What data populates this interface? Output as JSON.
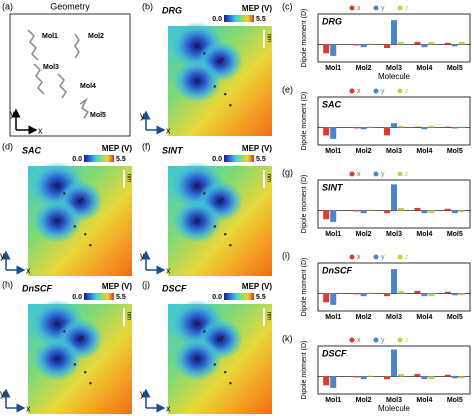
{
  "axes": {
    "x": "x",
    "y": "y"
  },
  "geometry_panel": {
    "label": "(a)",
    "title": "Geometry",
    "molecules": [
      "Mol1",
      "Mol2",
      "Mol3",
      "Mol4",
      "Mol5"
    ]
  },
  "mep_panels": [
    {
      "label": "(b)",
      "method": "DRG",
      "colorbar_title": "MEP (V)",
      "colorbar_min": {
        "value": 0,
        "label": "0.0"
      },
      "colorbar_max": 5.5,
      "scale_bar": "nm"
    },
    {
      "label": "(d)",
      "method": "SAC",
      "colorbar_title": "MEP (V)",
      "colorbar_min": {
        "value": 0,
        "label": "0.0"
      },
      "colorbar_max": 5.5,
      "scale_bar": "nm"
    },
    {
      "label": "(f)",
      "method": "SINT",
      "colorbar_title": "MEP (V)",
      "colorbar_min": {
        "value": 0,
        "label": "0.0"
      },
      "colorbar_max": 5.5,
      "scale_bar": "nm"
    },
    {
      "label": "(h)",
      "method": "DnSCF",
      "colorbar_title": "MEP (V)",
      "colorbar_min": {
        "value": 0,
        "label": "0.0"
      },
      "colorbar_max": 5.5,
      "scale_bar": "nm"
    },
    {
      "label": "(j)",
      "method": "DSCF",
      "colorbar_title": "MEP (V)",
      "colorbar_min": {
        "value": 0,
        "label": "0.0"
      },
      "colorbar_max": 5.5,
      "scale_bar": "nm"
    }
  ],
  "chart_data": [
    {
      "type": "bar",
      "label": "(c)",
      "title": "DRG",
      "ylabel": "Dipole moment (D)",
      "xlabel": "Molecule",
      "categories": [
        "Mol1",
        "Mol2",
        "Mol3",
        "Mol4",
        "Mol5"
      ],
      "ylim": [
        -2,
        3.5
      ],
      "series": [
        {
          "name": "x",
          "color": "#e2382f",
          "values": [
            -1.0,
            -0.1,
            -0.4,
            0.3,
            0.2
          ]
        },
        {
          "name": "y",
          "color": "#4a86c8",
          "values": [
            -1.3,
            -0.3,
            2.8,
            -0.3,
            -0.2
          ]
        },
        {
          "name": "z",
          "color": "#c3d443",
          "values": [
            0.0,
            0.1,
            0.3,
            0.3,
            0.3
          ]
        }
      ]
    },
    {
      "type": "bar",
      "label": "(e)",
      "title": "SAC",
      "ylabel": "Dipole moment (D)",
      "categories": [
        "Mol1",
        "Mol2",
        "Mol3",
        "Mol4",
        "Mol5"
      ],
      "ylim": [
        -2,
        3.5
      ],
      "series": [
        {
          "name": "x",
          "color": "#e2382f",
          "values": [
            -0.9,
            -0.1,
            -0.9,
            0.1,
            0.1
          ]
        },
        {
          "name": "y",
          "color": "#4a86c8",
          "values": [
            -1.3,
            -0.2,
            0.5,
            -0.2,
            -0.1
          ]
        },
        {
          "name": "z",
          "color": "#c3d443",
          "values": [
            0.0,
            0.1,
            0.2,
            0.2,
            0.1
          ]
        }
      ]
    },
    {
      "type": "bar",
      "label": "(g)",
      "title": "SINT",
      "ylabel": "Dipole moment (D)",
      "categories": [
        "Mol1",
        "Mol2",
        "Mol3",
        "Mol4",
        "Mol5"
      ],
      "ylim": [
        -2,
        3.5
      ],
      "series": [
        {
          "name": "x",
          "color": "#e2382f",
          "values": [
            -1.0,
            -0.1,
            -0.3,
            0.3,
            0.2
          ]
        },
        {
          "name": "y",
          "color": "#4a86c8",
          "values": [
            -1.3,
            -0.3,
            3.0,
            -0.3,
            -0.3
          ]
        },
        {
          "name": "z",
          "color": "#c3d443",
          "values": [
            0.0,
            0.1,
            0.3,
            -0.3,
            -0.2
          ]
        }
      ]
    },
    {
      "type": "bar",
      "label": "(i)",
      "title": "DnSCF",
      "ylabel": "Dipole moment (D)",
      "categories": [
        "Mol1",
        "Mol2",
        "Mol3",
        "Mol4",
        "Mol5"
      ],
      "ylim": [
        -2,
        3.5
      ],
      "series": [
        {
          "name": "x",
          "color": "#e2382f",
          "values": [
            -1.0,
            -0.1,
            -0.3,
            0.3,
            0.2
          ]
        },
        {
          "name": "y",
          "color": "#4a86c8",
          "values": [
            -1.3,
            -0.3,
            2.8,
            -0.3,
            -0.2
          ]
        },
        {
          "name": "z",
          "color": "#c3d443",
          "values": [
            0.0,
            0.1,
            0.3,
            -0.3,
            -0.2
          ]
        }
      ]
    },
    {
      "type": "bar",
      "label": "(k)",
      "title": "DSCF",
      "ylabel": "Dipole moment (D)",
      "xlabel": "Molecule",
      "categories": [
        "Mol1",
        "Mol2",
        "Mol3",
        "Mol4",
        "Mol5"
      ],
      "ylim": [
        -2,
        3.5
      ],
      "series": [
        {
          "name": "x",
          "color": "#e2382f",
          "values": [
            -1.0,
            -0.1,
            -0.3,
            0.3,
            0.2
          ]
        },
        {
          "name": "y",
          "color": "#4a86c8",
          "values": [
            -1.3,
            -0.3,
            3.1,
            -0.3,
            -0.2
          ]
        },
        {
          "name": "z",
          "color": "#c3d443",
          "values": [
            0.0,
            0.1,
            0.3,
            -0.3,
            -0.2
          ]
        }
      ]
    }
  ]
}
